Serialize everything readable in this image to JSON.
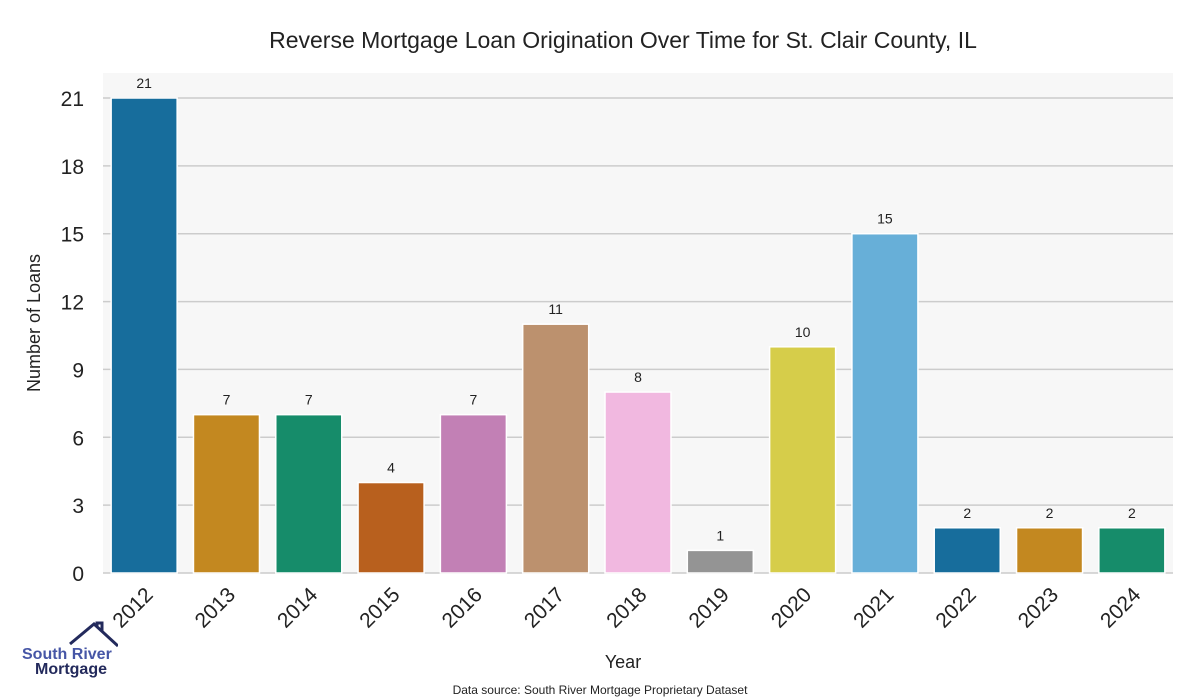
{
  "chart_data": {
    "type": "bar",
    "title": "Reverse Mortgage Loan Origination Over Time for St. Clair County, IL",
    "xlabel": "Year",
    "ylabel": "Number of Loans",
    "categories": [
      "2012",
      "2013",
      "2014",
      "2015",
      "2016",
      "2017",
      "2018",
      "2019",
      "2020",
      "2021",
      "2022",
      "2023",
      "2024"
    ],
    "values": [
      21,
      7,
      7,
      4,
      7,
      11,
      8,
      1,
      10,
      15,
      2,
      2,
      2
    ],
    "colors": [
      "#176d9c",
      "#c38820",
      "#168c6a",
      "#b8601e",
      "#c280b5",
      "#bc916e",
      "#f1b8e0",
      "#949494",
      "#d6cd4a",
      "#67afd8",
      "#176d9c",
      "#c38820",
      "#168c6a"
    ],
    "yticks": [
      0,
      3,
      6,
      9,
      12,
      15,
      18,
      21
    ],
    "ylim": [
      0,
      22
    ],
    "grid": true,
    "background": "#f7f7f7"
  },
  "source": "Data source: South River Mortgage Proprietary Dataset",
  "logo": {
    "line1": "South River",
    "line2": "Mortgage"
  }
}
